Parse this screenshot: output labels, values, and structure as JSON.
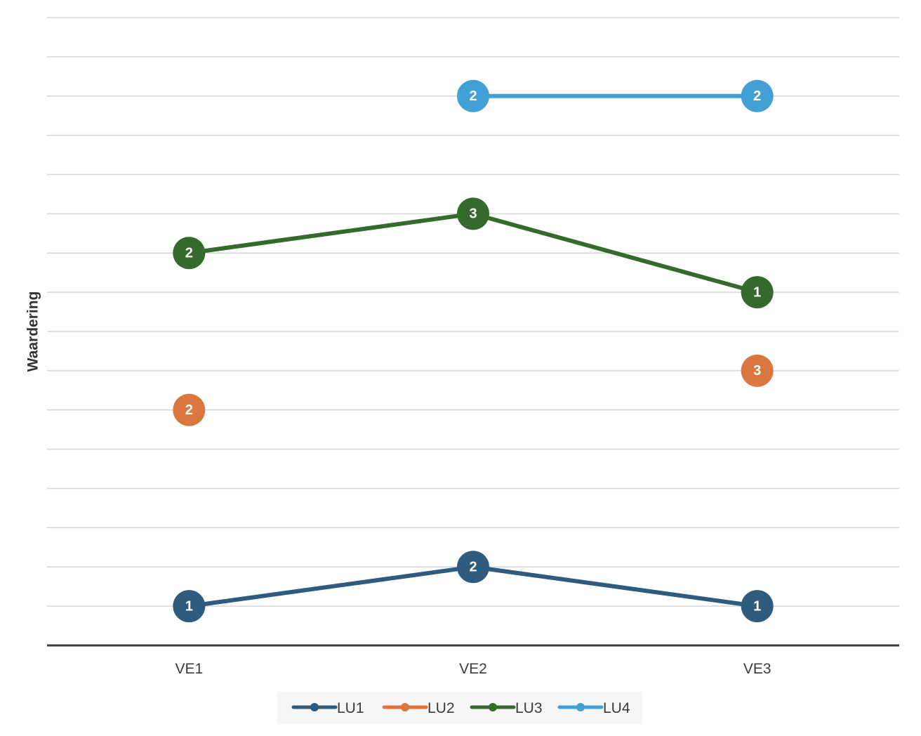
{
  "chart_data": {
    "type": "line",
    "title": "",
    "xlabel": "",
    "ylabel": "Waardering",
    "categories": [
      "VE1",
      "VE2",
      "VE3"
    ],
    "ylim": [
      0,
      16
    ],
    "grid": true,
    "legend_position": "bottom",
    "series": [
      {
        "name": "LU1",
        "color": "#2e5b7e",
        "values": [
          1,
          2,
          1
        ],
        "y": [
          1,
          2,
          1
        ]
      },
      {
        "name": "LU2",
        "color": "#d9773f",
        "values": [
          2,
          null,
          3
        ],
        "y": [
          6,
          null,
          7
        ]
      },
      {
        "name": "LU3",
        "color": "#346a2c",
        "values": [
          2,
          3,
          1
        ],
        "y": [
          10,
          11,
          9
        ]
      },
      {
        "name": "LU4",
        "color": "#43a0d5",
        "values": [
          null,
          2,
          2
        ],
        "y": [
          null,
          14,
          14
        ]
      }
    ]
  }
}
